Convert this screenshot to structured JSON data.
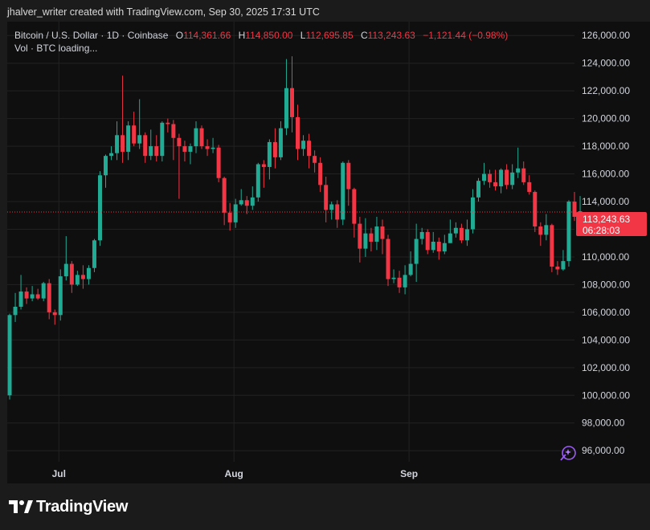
{
  "header": {
    "text": "jhalver_writer created with TradingView.com, Sep 30, 2025 17:31 UTC"
  },
  "legend": {
    "symbol": "Bitcoin / U.S. Dollar · 1D · Coinbase",
    "o_label": "O",
    "o_value": "114,361.66",
    "h_label": "H",
    "h_value": "114,850.00",
    "l_label": "L",
    "l_value": "112,695.85",
    "c_label": "C",
    "c_value": "113,243.63",
    "change": "−1,121.44 (−0.98%)",
    "vol": "Vol · BTC loading..."
  },
  "price_tag": {
    "price": "113,243.63",
    "countdown": "06:28:03"
  },
  "brand": {
    "name": "TradingView"
  },
  "icons": {
    "logo": "tradingview-logo-icon",
    "assistant": "sparkle-wand-icon"
  },
  "colors": {
    "up": "#22ab94",
    "down": "#f23645",
    "background": "#0f0f0f",
    "grid": "#222222",
    "axis_text": "#d1d4dc"
  },
  "chart_data": {
    "type": "candlestick",
    "title": "Bitcoin / U.S. Dollar · 1D · Coinbase",
    "ylim": [
      95200,
      127000
    ],
    "y_ticks": [
      "96,000.00",
      "98,000.00",
      "100,000.00",
      "102,000.00",
      "104,000.00",
      "106,000.00",
      "108,000.00",
      "110,000.00",
      "112,000.00",
      "114,000.00",
      "116,000.00",
      "118,000.00",
      "120,000.00",
      "122,000.00",
      "124,000.00",
      "126,000.00"
    ],
    "y_tick_values": [
      96000,
      98000,
      100000,
      102000,
      104000,
      106000,
      108000,
      110000,
      112000,
      114000,
      116000,
      118000,
      120000,
      122000,
      124000,
      126000
    ],
    "x_ticks": [
      {
        "label": "Jul",
        "index": 9
      },
      {
        "label": "Aug",
        "index": 40
      },
      {
        "label": "Sep",
        "index": 71
      }
    ],
    "last_price": 113243.63,
    "candles": [
      [
        100000,
        105800,
        99700,
        105900
      ],
      [
        105800,
        106400,
        105300,
        107400
      ],
      [
        106400,
        107500,
        106200,
        108700
      ],
      [
        107500,
        107000,
        106600,
        107800
      ],
      [
        107000,
        107300,
        106800,
        107900
      ],
      [
        107300,
        107000,
        106900,
        107700
      ],
      [
        107000,
        108100,
        106800,
        108200
      ],
      [
        108100,
        106000,
        105500,
        108400
      ],
      [
        106000,
        105800,
        105100,
        106200
      ],
      [
        105800,
        108600,
        105400,
        109100
      ],
      [
        108600,
        109500,
        108300,
        111500
      ],
      [
        109500,
        108000,
        107400,
        109700
      ],
      [
        108000,
        108700,
        107900,
        109000
      ],
      [
        108700,
        108400,
        107700,
        109400
      ],
      [
        108400,
        109200,
        108000,
        109400
      ],
      [
        109200,
        111200,
        108900,
        111300
      ],
      [
        111200,
        115900,
        110800,
        116200
      ],
      [
        115900,
        117300,
        115000,
        117400
      ],
      [
        117300,
        117500,
        117000,
        118000
      ],
      [
        117500,
        118800,
        117000,
        119800
      ],
      [
        118800,
        117600,
        116800,
        123100
      ],
      [
        117600,
        119500,
        117000,
        119800
      ],
      [
        119500,
        118200,
        118000,
        120500
      ],
      [
        118200,
        118800,
        117800,
        121400
      ],
      [
        118800,
        117300,
        116800,
        119000
      ],
      [
        117300,
        118000,
        117000,
        119200
      ],
      [
        118000,
        117300,
        116900,
        118800
      ],
      [
        117300,
        119700,
        116900,
        119800
      ],
      [
        119700,
        119600,
        119000,
        120000
      ],
      [
        119600,
        118600,
        117000,
        119900
      ],
      [
        118600,
        118000,
        114200,
        118900
      ],
      [
        118000,
        117600,
        116900,
        118400
      ],
      [
        117600,
        118000,
        116700,
        118200
      ],
      [
        118000,
        119300,
        117500,
        119800
      ],
      [
        119300,
        118000,
        117800,
        119500
      ],
      [
        118000,
        117800,
        117300,
        118500
      ],
      [
        117800,
        117900,
        117500,
        118600
      ],
      [
        117900,
        115700,
        115400,
        118100
      ],
      [
        115700,
        113200,
        112300,
        115800
      ],
      [
        113200,
        112500,
        111900,
        113900
      ],
      [
        112500,
        113800,
        112100,
        114200
      ],
      [
        113800,
        114100,
        113700,
        114900
      ],
      [
        114100,
        113700,
        113100,
        114400
      ],
      [
        113700,
        114300,
        113400,
        115100
      ],
      [
        114300,
        116700,
        114000,
        116800
      ],
      [
        116700,
        116500,
        115000,
        117000
      ],
      [
        116500,
        118300,
        115600,
        118500
      ],
      [
        118300,
        117200,
        116400,
        119300
      ],
      [
        117200,
        119300,
        117000,
        119800
      ],
      [
        119300,
        122200,
        118800,
        124300
      ],
      [
        122200,
        120100,
        119000,
        124500
      ],
      [
        120100,
        117800,
        117000,
        121000
      ],
      [
        117800,
        118400,
        117300,
        118800
      ],
      [
        118400,
        117300,
        116400,
        118900
      ],
      [
        117300,
        116800,
        116100,
        117700
      ],
      [
        116800,
        115200,
        114700,
        117200
      ],
      [
        115200,
        113400,
        112500,
        115800
      ],
      [
        113400,
        113800,
        112700,
        114000
      ],
      [
        113800,
        112700,
        112100,
        114100
      ],
      [
        112700,
        116800,
        112300,
        116900
      ],
      [
        116800,
        114900,
        113700,
        117000
      ],
      [
        114900,
        112400,
        111400,
        115000
      ],
      [
        112400,
        110600,
        109600,
        112900
      ],
      [
        110600,
        111700,
        110000,
        112800
      ],
      [
        111700,
        111100,
        110400,
        112100
      ],
      [
        111100,
        112200,
        110500,
        112900
      ],
      [
        112200,
        111300,
        110200,
        112700
      ],
      [
        111300,
        108400,
        107900,
        111600
      ],
      [
        108400,
        108500,
        108100,
        109100
      ],
      [
        108500,
        107800,
        107400,
        109000
      ],
      [
        107800,
        108700,
        107300,
        109400
      ],
      [
        108700,
        109500,
        108600,
        110400
      ],
      [
        109500,
        111300,
        108200,
        112400
      ],
      [
        111300,
        111800,
        110900,
        112100
      ],
      [
        111800,
        110500,
        110200,
        112000
      ],
      [
        110500,
        111100,
        110300,
        111800
      ],
      [
        111100,
        110400,
        109800,
        111400
      ],
      [
        110400,
        111000,
        110200,
        111600
      ],
      [
        111000,
        111700,
        111000,
        112700
      ],
      [
        111700,
        112100,
        111400,
        112500
      ],
      [
        112100,
        111200,
        111000,
        112400
      ],
      [
        111200,
        112000,
        110800,
        112700
      ],
      [
        112000,
        114300,
        111700,
        114900
      ],
      [
        114300,
        115500,
        114000,
        115700
      ],
      [
        115500,
        116000,
        115200,
        116800
      ],
      [
        116000,
        115400,
        115000,
        116300
      ],
      [
        115400,
        115100,
        114800,
        116300
      ],
      [
        115100,
        116300,
        114600,
        116400
      ],
      [
        116300,
        115200,
        114900,
        116700
      ],
      [
        115200,
        116100,
        114900,
        116700
      ],
      [
        116100,
        116400,
        115700,
        117900
      ],
      [
        116400,
        115400,
        115200,
        116900
      ],
      [
        115400,
        114700,
        114500,
        115900
      ],
      [
        114700,
        112200,
        111800,
        114800
      ],
      [
        112200,
        111600,
        110800,
        112500
      ],
      [
        111600,
        112300,
        111200,
        113100
      ],
      [
        112300,
        109300,
        108900,
        112400
      ],
      [
        109300,
        109100,
        108700,
        109700
      ],
      [
        109100,
        109700,
        109000,
        110500
      ],
      [
        109700,
        114000,
        109300,
        114100
      ],
      [
        114000,
        112900,
        112600,
        114700
      ],
      [
        112900,
        113300,
        112700,
        114400
      ]
    ]
  }
}
